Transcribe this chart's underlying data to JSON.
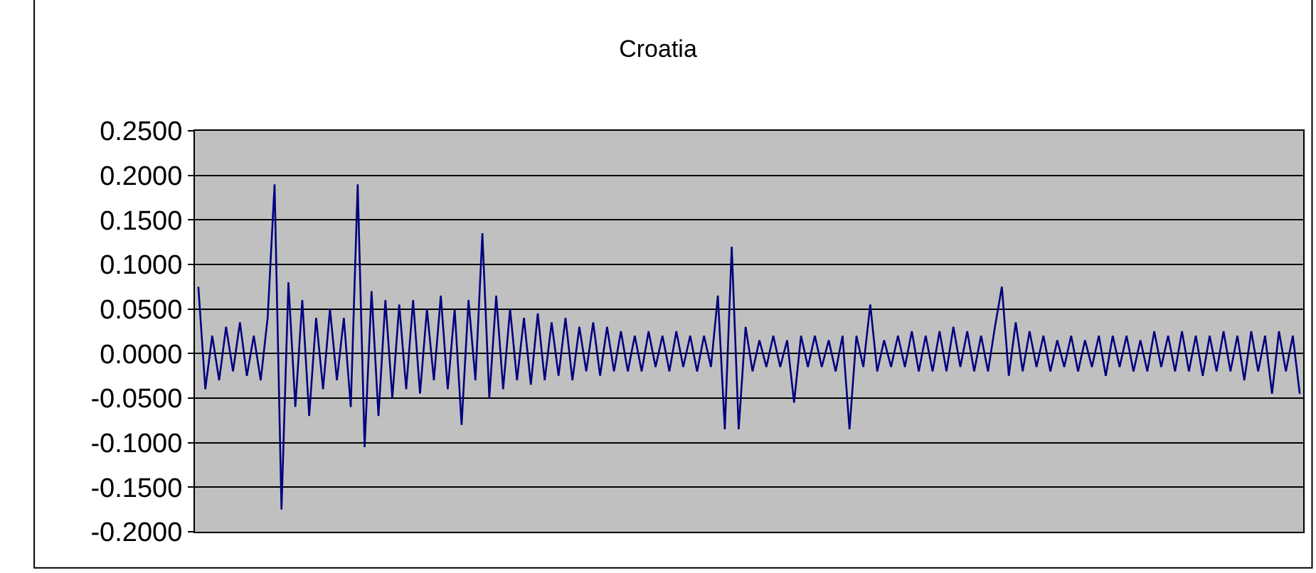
{
  "chart_data": {
    "type": "line",
    "title": "Croatia",
    "categories": [
      null,
      null,
      null,
      null,
      null,
      null,
      null,
      null,
      null,
      null,
      null,
      null,
      null,
      null,
      null,
      null,
      null,
      null,
      null,
      null,
      null,
      null,
      null,
      null,
      null,
      null,
      null,
      null,
      null,
      null,
      null,
      null,
      null,
      null,
      null,
      null,
      null,
      null,
      null,
      null,
      null,
      null,
      null,
      null,
      null,
      null,
      null,
      null,
      null,
      null,
      null,
      null,
      null,
      null,
      null,
      null,
      null,
      null,
      null,
      null,
      null,
      null,
      null,
      null,
      null,
      null,
      null,
      null,
      null,
      null,
      null,
      null,
      null,
      null,
      null,
      null,
      null,
      null,
      null,
      null,
      null,
      null,
      null,
      null,
      null,
      null,
      null,
      null,
      null,
      null,
      null,
      null,
      null,
      null,
      null,
      null,
      null,
      null,
      null,
      null,
      null,
      null,
      null,
      null,
      null,
      null,
      null,
      null,
      null,
      null,
      null,
      null,
      null,
      null,
      null,
      null,
      null,
      null,
      null,
      null,
      null,
      null,
      null,
      null,
      null,
      null,
      null,
      null,
      null,
      null,
      null,
      null,
      null,
      null,
      null,
      null,
      null,
      null,
      null,
      null,
      null,
      null,
      null,
      null,
      null,
      null,
      null,
      null,
      null,
      null,
      null,
      null,
      null,
      null,
      null,
      null,
      null,
      null,
      null,
      null
    ],
    "series": [
      {
        "color": "#000080",
        "values": [
          0.075,
          -0.04,
          0.02,
          -0.03,
          0.03,
          -0.02,
          0.035,
          -0.025,
          0.02,
          -0.03,
          0.04,
          0.19,
          -0.175,
          0.08,
          -0.06,
          0.06,
          -0.07,
          0.04,
          -0.04,
          0.05,
          -0.03,
          0.04,
          -0.06,
          0.19,
          -0.105,
          0.07,
          -0.07,
          0.06,
          -0.05,
          0.055,
          -0.04,
          0.06,
          -0.045,
          0.05,
          -0.03,
          0.065,
          -0.04,
          0.05,
          -0.08,
          0.06,
          -0.03,
          0.135,
          -0.05,
          0.065,
          -0.04,
          0.05,
          -0.03,
          0.04,
          -0.035,
          0.045,
          -0.03,
          0.035,
          -0.025,
          0.04,
          -0.03,
          0.03,
          -0.02,
          0.035,
          -0.025,
          0.03,
          -0.02,
          0.025,
          -0.02,
          0.02,
          -0.02,
          0.025,
          -0.015,
          0.02,
          -0.02,
          0.025,
          -0.015,
          0.02,
          -0.02,
          0.02,
          -0.015,
          0.065,
          -0.085,
          0.12,
          -0.085,
          0.03,
          -0.02,
          0.015,
          -0.015,
          0.02,
          -0.015,
          0.015,
          -0.055,
          0.02,
          -0.015,
          0.02,
          -0.015,
          0.015,
          -0.02,
          0.02,
          -0.085,
          0.02,
          -0.015,
          0.055,
          -0.02,
          0.015,
          -0.015,
          0.02,
          -0.015,
          0.025,
          -0.02,
          0.02,
          -0.02,
          0.025,
          -0.02,
          0.03,
          -0.015,
          0.025,
          -0.02,
          0.02,
          -0.02,
          0.03,
          0.075,
          -0.025,
          0.035,
          -0.02,
          0.025,
          -0.015,
          0.02,
          -0.02,
          0.015,
          -0.015,
          0.02,
          -0.02,
          0.015,
          -0.015,
          0.02,
          -0.025,
          0.02,
          -0.015,
          0.02,
          -0.02,
          0.015,
          -0.02,
          0.025,
          -0.015,
          0.02,
          -0.02,
          0.025,
          -0.02,
          0.02,
          -0.025,
          0.02,
          -0.02,
          0.025,
          -0.02,
          0.02,
          -0.03,
          0.025,
          -0.02,
          0.02,
          -0.045,
          0.025,
          -0.02,
          0.02,
          -0.045
        ]
      }
    ],
    "ylim": [
      -0.2,
      0.25
    ],
    "yticks": [
      {
        "value": -0.2,
        "label": "-0.2000"
      },
      {
        "value": -0.15,
        "label": "-0.1500"
      },
      {
        "value": -0.1,
        "label": "-0.1000"
      },
      {
        "value": -0.05,
        "label": "-0.0500"
      },
      {
        "value": 0,
        "label": "0.0000"
      },
      {
        "value": 0.05,
        "label": "0.0500"
      },
      {
        "value": 0.1,
        "label": "0.1000"
      },
      {
        "value": 0.15,
        "label": "0.1500"
      },
      {
        "value": 0.2,
        "label": "0.2000"
      },
      {
        "value": 0.25,
        "label": "0.2500"
      }
    ],
    "grid": "y",
    "tick_labels": "y",
    "marker": "none",
    "line_style": "solid"
  }
}
